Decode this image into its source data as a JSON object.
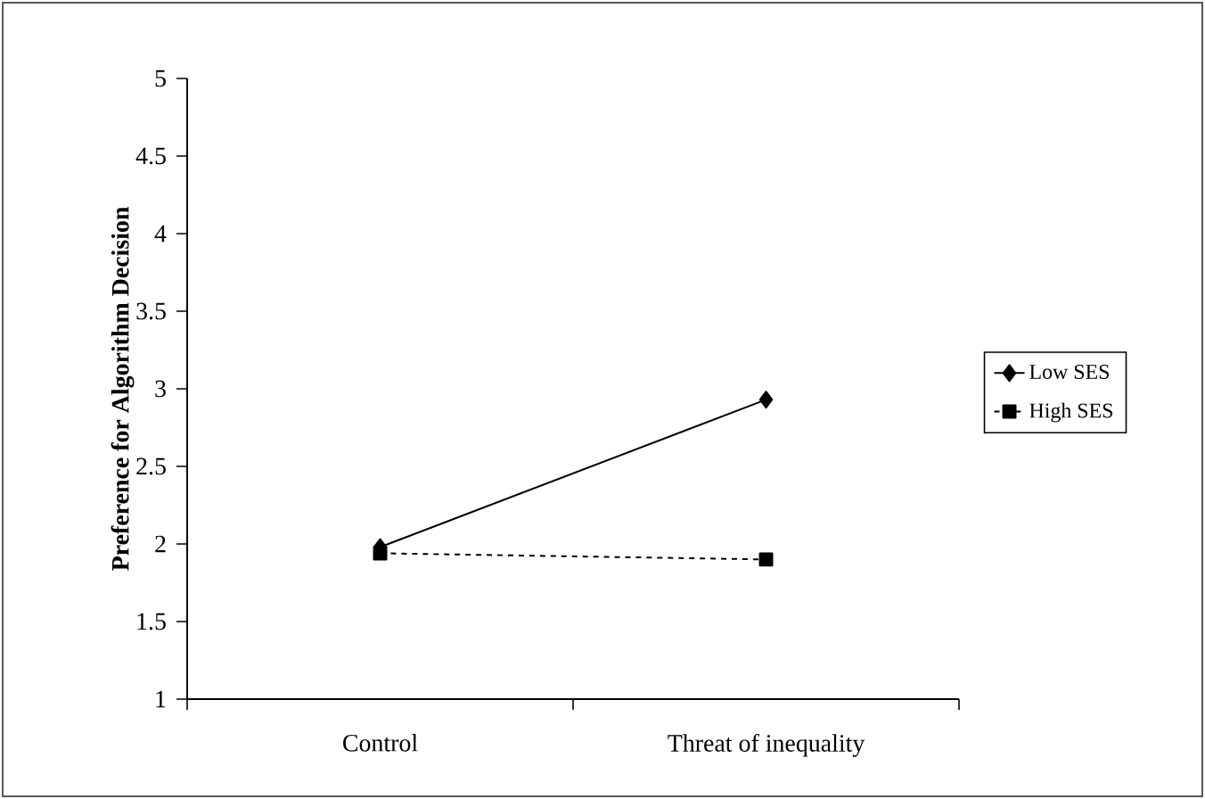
{
  "chart_data": {
    "type": "line",
    "ylabel": "Preference for Algorithm Decision",
    "categories": [
      "Control",
      "Threat of inequality"
    ],
    "series": [
      {
        "name": "Low SES",
        "color": "#000000",
        "values": [
          1.98,
          2.93
        ],
        "marker": "diamond",
        "line_style": "solid"
      },
      {
        "name": "High SES",
        "color": "#000000",
        "values": [
          1.94,
          1.9
        ],
        "marker": "square",
        "line_style": "dashed"
      }
    ],
    "ylim": [
      1,
      5
    ],
    "yticks": [
      1,
      1.5,
      2,
      2.5,
      3,
      3.5,
      4,
      4.5,
      5
    ],
    "legend": "right"
  }
}
